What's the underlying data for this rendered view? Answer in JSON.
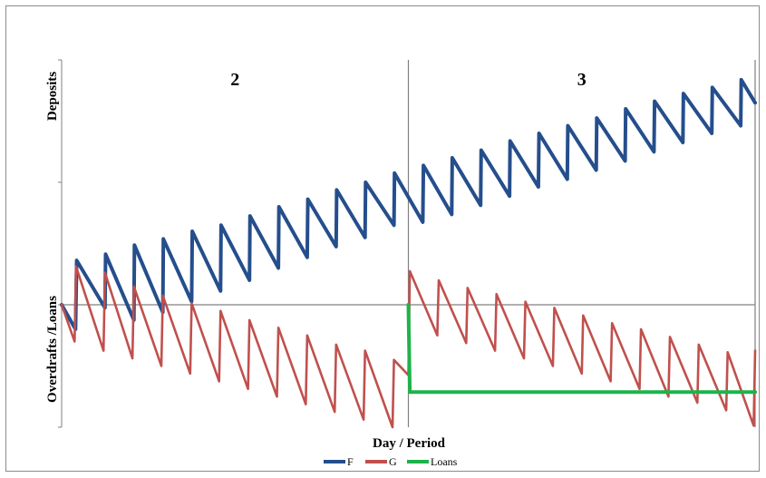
{
  "chart_data": {
    "type": "line",
    "xlabel": "Day / Period",
    "ylabel_top": "Deposits",
    "ylabel_bottom": "Overdrafts /Loans",
    "xlim": [
      0,
      24
    ],
    "ylim": [
      -4,
      8
    ],
    "period_labels": [
      {
        "label": "2",
        "x": 6
      },
      {
        "label": "3",
        "x": 18
      }
    ],
    "period_dividers": [
      12,
      24
    ],
    "zero_line": 0,
    "colors": {
      "F": "#254e8c",
      "G": "#c0504d",
      "Loans": "#1db34a",
      "axis": "#808080"
    },
    "series": [
      {
        "name": "F",
        "points": [
          [
            0.0,
            0.0
          ],
          [
            0.48,
            -0.8
          ],
          [
            0.52,
            1.45
          ],
          [
            1.5,
            -0.1
          ],
          [
            1.52,
            1.65
          ],
          [
            2.5,
            -0.5
          ],
          [
            2.52,
            1.95
          ],
          [
            3.5,
            -0.25
          ],
          [
            3.52,
            2.15
          ],
          [
            4.5,
            0.1
          ],
          [
            4.52,
            2.4
          ],
          [
            5.5,
            0.45
          ],
          [
            5.52,
            2.6
          ],
          [
            6.5,
            0.8
          ],
          [
            6.52,
            2.9
          ],
          [
            7.5,
            1.2
          ],
          [
            7.52,
            3.2
          ],
          [
            8.5,
            1.55
          ],
          [
            8.52,
            3.45
          ],
          [
            9.5,
            1.9
          ],
          [
            9.52,
            3.75
          ],
          [
            10.5,
            2.2
          ],
          [
            10.52,
            4.0
          ],
          [
            11.5,
            2.6
          ],
          [
            11.52,
            4.3
          ],
          [
            12.5,
            2.7
          ],
          [
            12.52,
            4.55
          ],
          [
            13.5,
            2.95
          ],
          [
            13.52,
            4.8
          ],
          [
            14.5,
            3.25
          ],
          [
            14.52,
            5.05
          ],
          [
            15.5,
            3.55
          ],
          [
            15.52,
            5.35
          ],
          [
            16.5,
            3.85
          ],
          [
            16.52,
            5.6
          ],
          [
            17.5,
            4.1
          ],
          [
            17.52,
            5.85
          ],
          [
            18.5,
            4.4
          ],
          [
            18.52,
            6.1
          ],
          [
            19.5,
            4.7
          ],
          [
            19.52,
            6.4
          ],
          [
            20.5,
            5.0
          ],
          [
            20.52,
            6.65
          ],
          [
            21.5,
            5.3
          ],
          [
            21.52,
            6.9
          ],
          [
            22.5,
            5.6
          ],
          [
            22.52,
            7.1
          ],
          [
            23.5,
            5.85
          ],
          [
            23.52,
            7.35
          ],
          [
            24.0,
            6.6
          ]
        ]
      },
      {
        "name": "G",
        "points": [
          [
            0.0,
            0.0
          ],
          [
            0.45,
            -1.2
          ],
          [
            0.5,
            1.25
          ],
          [
            1.45,
            -1.5
          ],
          [
            1.5,
            1.05
          ],
          [
            2.45,
            -1.75
          ],
          [
            2.5,
            0.6
          ],
          [
            3.45,
            -2.0
          ],
          [
            3.5,
            0.3
          ],
          [
            4.45,
            -2.25
          ],
          [
            4.5,
            0.05
          ],
          [
            5.45,
            -2.5
          ],
          [
            5.5,
            -0.2
          ],
          [
            6.45,
            -2.75
          ],
          [
            6.5,
            -0.5
          ],
          [
            7.45,
            -3.0
          ],
          [
            7.5,
            -0.75
          ],
          [
            8.45,
            -3.25
          ],
          [
            8.5,
            -1.0
          ],
          [
            9.45,
            -3.5
          ],
          [
            9.5,
            -1.3
          ],
          [
            10.45,
            -3.75
          ],
          [
            10.5,
            -1.5
          ],
          [
            11.45,
            -4.0
          ],
          [
            11.5,
            -1.8
          ],
          [
            12.0,
            -2.3
          ],
          [
            12.05,
            1.1
          ],
          [
            13.0,
            -1.0
          ],
          [
            13.05,
            0.8
          ],
          [
            14.0,
            -1.25
          ],
          [
            14.05,
            0.55
          ],
          [
            15.0,
            -1.5
          ],
          [
            15.05,
            0.35
          ],
          [
            16.0,
            -1.75
          ],
          [
            16.05,
            0.1
          ],
          [
            17.0,
            -2.0
          ],
          [
            17.05,
            -0.1
          ],
          [
            18.0,
            -2.25
          ],
          [
            18.05,
            -0.35
          ],
          [
            19.0,
            -2.5
          ],
          [
            19.05,
            -0.6
          ],
          [
            20.0,
            -2.75
          ],
          [
            20.05,
            -0.8
          ],
          [
            21.0,
            -3.0
          ],
          [
            21.05,
            -1.05
          ],
          [
            22.0,
            -3.2
          ],
          [
            22.05,
            -1.3
          ],
          [
            23.0,
            -3.45
          ],
          [
            23.05,
            -1.55
          ],
          [
            23.95,
            -3.95
          ],
          [
            24.0,
            -1.5
          ]
        ]
      },
      {
        "name": "Loans",
        "points": [
          [
            12.0,
            0.0
          ],
          [
            12.05,
            -2.85
          ],
          [
            24.0,
            -2.85
          ]
        ]
      }
    ],
    "legend": {
      "position": "bottom",
      "entries": [
        "F",
        "G",
        "Loans"
      ]
    }
  }
}
